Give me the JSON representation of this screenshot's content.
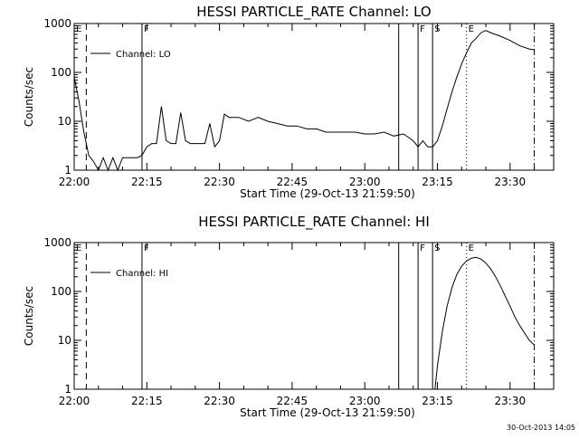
{
  "footer_timestamp": "30-Oct-2013 14:05",
  "chart_data": [
    {
      "type": "line",
      "title": "HESSI PARTICLE_RATE Channel: LO",
      "xlabel": "Start Time (29-Oct-13 21:59:50)",
      "ylabel": "Counts/sec",
      "yscale": "log",
      "ylim": [
        1,
        1000
      ],
      "xlim": [
        "22:00",
        "23:39"
      ],
      "x_ticks": [
        "22:00",
        "22:15",
        "22:30",
        "22:45",
        "23:00",
        "23:15",
        "23:30"
      ],
      "y_ticks": [
        "1",
        "10",
        "100",
        "1000"
      ],
      "legend": {
        "entries": [
          "Channel: LO"
        ],
        "placement": "top-left"
      },
      "markers": [
        {
          "time": "22:00",
          "label": "E",
          "style": "none"
        },
        {
          "time": "22:02:30",
          "label": "",
          "style": "dashed"
        },
        {
          "time": "22:14",
          "label": "F",
          "style": "solid"
        },
        {
          "time": "23:07",
          "label": "",
          "style": "solid"
        },
        {
          "time": "23:11",
          "label": "F",
          "style": "solid"
        },
        {
          "time": "23:14",
          "label": "S",
          "style": "solid"
        },
        {
          "time": "23:21",
          "label": "E",
          "style": "dotted"
        },
        {
          "time": "23:35",
          "label": "",
          "style": "dashdot"
        }
      ],
      "series": [
        {
          "name": "Channel: LO",
          "x": [
            "22:00",
            "22:01",
            "22:02",
            "22:03",
            "22:04",
            "22:05",
            "22:06",
            "22:07",
            "22:08",
            "22:09",
            "22:10",
            "22:11",
            "22:12",
            "22:13",
            "22:14",
            "22:15",
            "22:16",
            "22:17",
            "22:18",
            "22:19",
            "22:20",
            "22:21",
            "22:22",
            "22:23",
            "22:24",
            "22:25",
            "22:26",
            "22:27",
            "22:28",
            "22:29",
            "22:30",
            "22:31",
            "22:32",
            "22:34",
            "22:36",
            "22:38",
            "22:40",
            "22:42",
            "22:44",
            "22:46",
            "22:48",
            "22:50",
            "22:52",
            "22:54",
            "22:56",
            "22:58",
            "23:00",
            "23:02",
            "23:04",
            "23:06",
            "23:08",
            "23:10",
            "23:11",
            "23:12",
            "23:13",
            "23:14",
            "23:15",
            "23:16",
            "23:17",
            "23:18",
            "23:19",
            "23:20",
            "23:21",
            "23:22",
            "23:23",
            "23:24",
            "23:25",
            "23:26",
            "23:28",
            "23:30",
            "23:32",
            "23:34",
            "23:35"
          ],
          "y": [
            80,
            25,
            6,
            2,
            1.5,
            1,
            1.8,
            1,
            1.8,
            1,
            1.8,
            1.8,
            1.8,
            1.8,
            2,
            3,
            3.5,
            3.5,
            20,
            4,
            3.5,
            3.5,
            15,
            4,
            3.5,
            3.5,
            3.5,
            3.5,
            9,
            3,
            4,
            14,
            12,
            12,
            10,
            12,
            10,
            9,
            8,
            8,
            7,
            7,
            6,
            6,
            6,
            6,
            5.5,
            5.5,
            6,
            5,
            5.5,
            4,
            3,
            4,
            3,
            3,
            4,
            8,
            18,
            40,
            80,
            150,
            250,
            400,
            500,
            650,
            720,
            650,
            550,
            450,
            350,
            300,
            290
          ]
        }
      ]
    },
    {
      "type": "line",
      "title": "HESSI PARTICLE_RATE Channel: HI",
      "xlabel": "Start Time (29-Oct-13 21:59:50)",
      "ylabel": "Counts/sec",
      "yscale": "log",
      "ylim": [
        1,
        1000
      ],
      "xlim": [
        "22:00",
        "23:39"
      ],
      "x_ticks": [
        "22:00",
        "22:15",
        "22:30",
        "22:45",
        "23:00",
        "23:15",
        "23:30"
      ],
      "y_ticks": [
        "1",
        "10",
        "100",
        "1000"
      ],
      "legend": {
        "entries": [
          "Channel: HI"
        ],
        "placement": "top-left"
      },
      "markers": [
        {
          "time": "22:00",
          "label": "E",
          "style": "none"
        },
        {
          "time": "22:02:30",
          "label": "",
          "style": "dashed"
        },
        {
          "time": "22:14",
          "label": "F",
          "style": "solid"
        },
        {
          "time": "23:07",
          "label": "",
          "style": "solid"
        },
        {
          "time": "23:11",
          "label": "F",
          "style": "solid"
        },
        {
          "time": "23:14",
          "label": "S",
          "style": "solid"
        },
        {
          "time": "23:21",
          "label": "E",
          "style": "dotted"
        },
        {
          "time": "23:35",
          "label": "",
          "style": "dashdot"
        }
      ],
      "series": [
        {
          "name": "Channel: HI",
          "x": [
            "23:14:30",
            "23:15",
            "23:16",
            "23:17",
            "23:18",
            "23:19",
            "23:20",
            "23:21",
            "23:22",
            "23:23",
            "23:24",
            "23:25",
            "23:26",
            "23:27",
            "23:28",
            "23:29",
            "23:30",
            "23:31",
            "23:32",
            "23:33",
            "23:34",
            "23:35"
          ],
          "y": [
            1,
            3,
            15,
            50,
            120,
            220,
            330,
            420,
            480,
            500,
            460,
            380,
            290,
            200,
            130,
            80,
            50,
            30,
            20,
            14,
            10,
            8
          ]
        }
      ]
    }
  ]
}
